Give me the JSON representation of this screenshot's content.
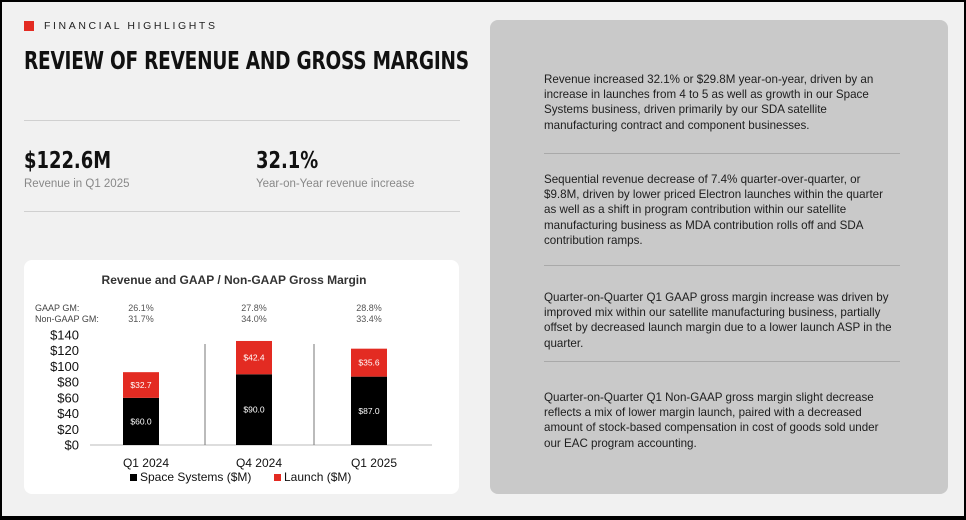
{
  "header": {
    "section_label": "FINANCIAL HIGHLIGHTS",
    "title": "REVIEW OF REVENUE AND GROSS MARGINS"
  },
  "metrics": [
    {
      "value": "$122.6M",
      "label": "Revenue in Q1 2025"
    },
    {
      "value": "32.1%",
      "label": "Year-on-Year revenue increase"
    }
  ],
  "chart_data": {
    "type": "bar",
    "title": "Revenue and GAAP / Non-GAAP Gross Margin",
    "categories": [
      "Q1 2024",
      "Q4 2024",
      "Q1 2025"
    ],
    "series": [
      {
        "name": "Space Systems ($M)",
        "color": "#000000",
        "values": [
          60.0,
          90.0,
          87.0
        ],
        "labels": [
          "$60.0",
          "$90.0",
          "$87.0"
        ]
      },
      {
        "name": "Launch ($M)",
        "color": "#e32b22",
        "values": [
          32.7,
          42.4,
          35.6
        ],
        "labels": [
          "$32.7",
          "$42.4",
          "$35.6"
        ]
      }
    ],
    "stacked": true,
    "ylim": [
      0,
      140
    ],
    "yticks": [
      "$0",
      "$20",
      "$40",
      "$60",
      "$80",
      "$100",
      "$120",
      "$140"
    ],
    "margin_rows": [
      {
        "label": "GAAP GM:",
        "values": [
          "26.1%",
          "27.8%",
          "28.8%"
        ]
      },
      {
        "label": "Non-GAAP GM:",
        "values": [
          "31.7%",
          "34.0%",
          "33.4%"
        ]
      }
    ],
    "legend_position": "bottom",
    "grid": false
  },
  "commentary": [
    "Revenue increased 32.1% or $29.8M year-on-year, driven by an increase in launches from 4 to 5 as well as growth in our Space Systems business, driven primarily by our SDA satellite manufacturing contract and component businesses.",
    "Sequential revenue decrease of 7.4% quarter-over-quarter, or $9.8M, driven by lower priced Electron launches within the quarter as well as a shift in program contribution within our satellite manufacturing business as MDA contribution rolls off and SDA contribution ramps.",
    "Quarter-on-Quarter Q1 GAAP gross margin increase was driven by improved mix within our satellite manufacturing business, partially offset by decreased launch margin due to a lower launch ASP in the quarter.",
    "Quarter-on-Quarter Q1 Non-GAAP gross margin slight decrease reflects a mix of lower margin launch, paired with a decreased amount of stock-based compensation in cost of goods sold under our EAC program accounting."
  ]
}
